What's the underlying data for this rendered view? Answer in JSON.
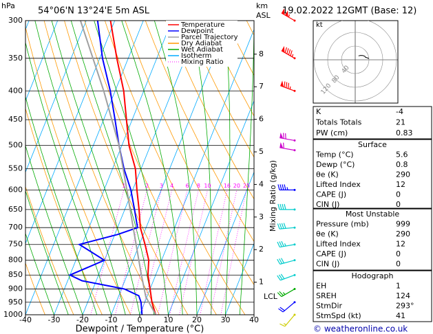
{
  "header": {
    "location": "54°06'N  13°24'E  5m  ASL",
    "date": "19.02.2022  12GMT  (Base: 12)"
  },
  "chart_data": {
    "type": "skewt",
    "y_label": "hPa",
    "x_label": "Dewpoint / Temperature (°C)",
    "yscale": "log",
    "xlim": [
      -40,
      40
    ],
    "ylim": [
      1000,
      300
    ],
    "xticks": [
      -40,
      -30,
      -20,
      -10,
      0,
      10,
      20,
      30,
      40
    ],
    "yticks": [
      300,
      350,
      400,
      450,
      500,
      550,
      600,
      650,
      700,
      750,
      800,
      850,
      900,
      950,
      1000
    ],
    "series": [
      {
        "name": "Temperature",
        "color": "#ff0000",
        "y": [
          1000,
          950,
          900,
          850,
          800,
          750,
          700,
          650,
          600,
          550,
          500,
          450,
          400,
          350,
          300
        ],
        "x": [
          5.6,
          2.5,
          0,
          -2.7,
          -4.5,
          -8,
          -12,
          -15,
          -18.5,
          -22,
          -27.5,
          -32,
          -37,
          -44,
          -51.5
        ]
      },
      {
        "name": "Dewpoint",
        "color": "#0000ff",
        "y": [
          1000,
          950,
          925,
          900,
          870,
          850,
          800,
          750,
          720,
          700,
          650,
          600,
          550,
          500,
          450,
          400,
          350,
          300
        ],
        "x": [
          0.8,
          -1.3,
          -3,
          -9,
          -25,
          -30,
          -20,
          -31,
          -19,
          -13,
          -16.6,
          -20.6,
          -26,
          -31,
          -36,
          -41.7,
          -49,
          -56
        ]
      },
      {
        "name": "Parcel Trajectory",
        "color": "#a0a0a0",
        "y": [
          1000,
          929,
          850,
          700,
          600,
          500,
          400,
          300
        ],
        "x": [
          5.6,
          -0.4,
          -5,
          -14.5,
          -22,
          -31,
          -44,
          -62
        ]
      }
    ],
    "reference_lines": [
      {
        "name": "Dry Adiabat",
        "color": "#ff9900"
      },
      {
        "name": "Wet Adiabat",
        "color": "#00aa00"
      },
      {
        "name": "Isotherm",
        "color": "#00aaff"
      },
      {
        "name": "Mixing Ratio",
        "color": "#ff00ff"
      }
    ],
    "mixing_ratio_label": "Mixing Ratio (g/kg)",
    "mixing_ratios": [
      1,
      2,
      3,
      4,
      6,
      8,
      10,
      16,
      20,
      25
    ],
    "height_label": [
      "km",
      "ASL"
    ],
    "height_ticks": [
      1,
      2,
      3,
      4,
      5,
      6,
      7,
      8
    ],
    "lcl": {
      "label": "LCL",
      "pressure": 929
    },
    "winds": {
      "pressure": [
        300,
        350,
        400,
        490,
        510,
        600,
        650,
        700,
        750,
        800,
        850,
        900,
        950,
        1000
      ],
      "direction": [
        300,
        300,
        290,
        280,
        280,
        270,
        270,
        265,
        260,
        255,
        250,
        240,
        230,
        220
      ],
      "speed": [
        105,
        95,
        85,
        70,
        60,
        45,
        40,
        40,
        35,
        30,
        30,
        25,
        20,
        15
      ],
      "colors": [
        "#ff0000",
        "#ff0000",
        "#ff0000",
        "#cc00cc",
        "#cc00cc",
        "#0000ff",
        "#00cccc",
        "#00cccc",
        "#00cccc",
        "#00cccc",
        "#00cccc",
        "#00aa00",
        "#0000ff",
        "#cccc00"
      ]
    }
  },
  "hodograph": {
    "unit": "kt",
    "rings": [
      40,
      80,
      120
    ]
  },
  "indices": {
    "rows": [
      [
        "K",
        "-4"
      ],
      [
        "Totals Totals",
        "21"
      ],
      [
        "PW (cm)",
        "0.83"
      ]
    ]
  },
  "surface": {
    "title": "Surface",
    "rows": [
      [
        "Temp (°C)",
        "5.6"
      ],
      [
        "Dewp (°C)",
        "0.8"
      ],
      [
        "θe (K)",
        "290"
      ],
      [
        "Lifted Index",
        "12"
      ],
      [
        "CAPE (J)",
        "0"
      ],
      [
        "CIN (J)",
        "0"
      ]
    ]
  },
  "most_unstable": {
    "title": "Most Unstable",
    "rows": [
      [
        "Pressure (mb)",
        "999"
      ],
      [
        "θe (K)",
        "290"
      ],
      [
        "Lifted Index",
        "12"
      ],
      [
        "CAPE (J)",
        "0"
      ],
      [
        "CIN (J)",
        "0"
      ]
    ]
  },
  "hodograph_table": {
    "title": "Hodograph",
    "rows": [
      [
        "EH",
        "1"
      ],
      [
        "SREH",
        "124"
      ],
      [
        "StmDir",
        "293°"
      ],
      [
        "StmSpd (kt)",
        "41"
      ]
    ]
  },
  "footer": "© weatheronline.co.uk"
}
